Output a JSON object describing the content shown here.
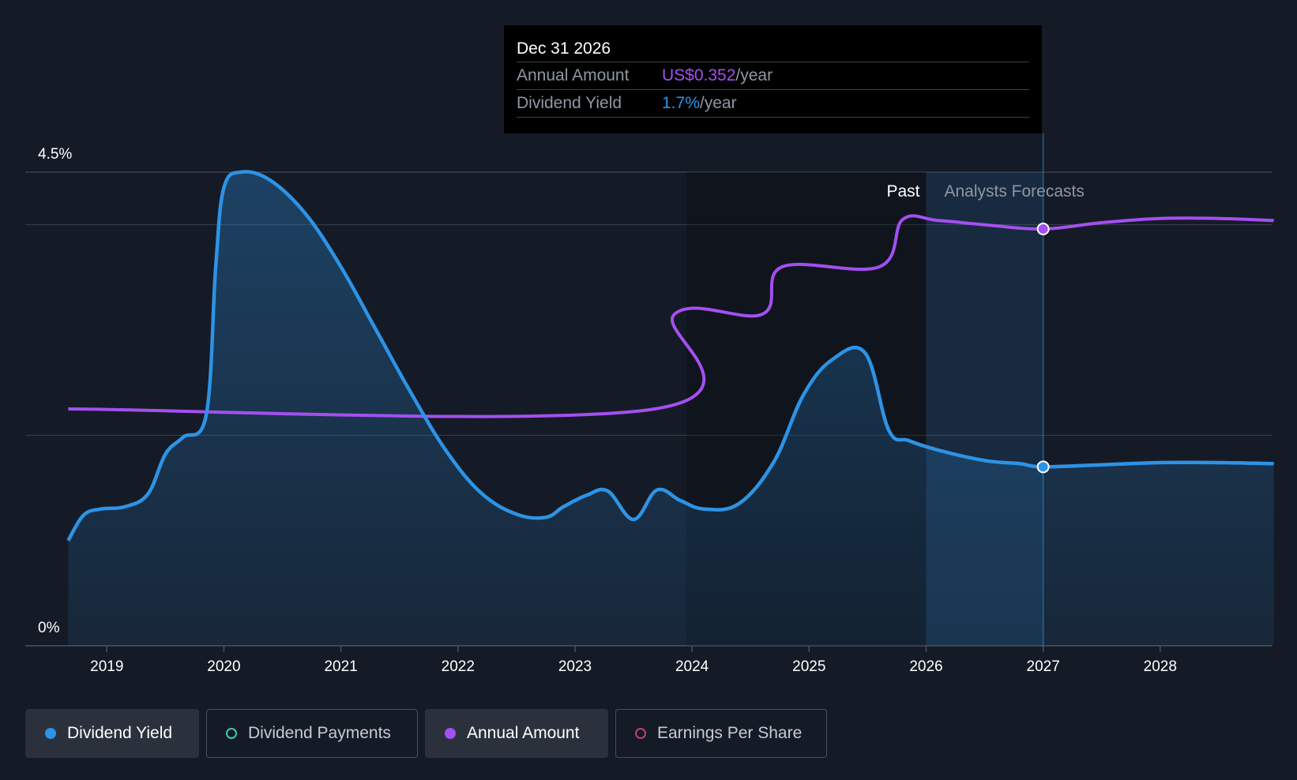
{
  "colors": {
    "background": "#151b26",
    "dividend_yield": "#2d93e6",
    "annual_amount": "#a44ff0",
    "dividend_payments": "#3bc8b4",
    "earnings_per_share": "#c2406e",
    "grid": "#39404b"
  },
  "chart_data": {
    "type": "line",
    "y_axis": {
      "top_label": "4.5%",
      "bottom_label": "0%",
      "ylim": [
        0,
        4.5
      ]
    },
    "x_axis": {
      "ticks": [
        "2019",
        "2020",
        "2021",
        "2022",
        "2023",
        "2024",
        "2025",
        "2026",
        "2027",
        "2028"
      ],
      "xlim": [
        2018.33,
        2029.0
      ]
    },
    "regions": {
      "past_label": "Past",
      "forecast_label": "Analysts Forecasts",
      "forecast_start": 2026.0,
      "hover_x": 2027.0
    },
    "series": [
      {
        "name": "Dividend Yield",
        "kind": "area",
        "points": [
          [
            2018.67,
            1.0
          ],
          [
            2018.8,
            1.24
          ],
          [
            2018.95,
            1.3
          ],
          [
            2019.15,
            1.32
          ],
          [
            2019.35,
            1.44
          ],
          [
            2019.5,
            1.82
          ],
          [
            2019.65,
            1.98
          ],
          [
            2019.85,
            2.2
          ],
          [
            2019.93,
            3.6
          ],
          [
            2020.0,
            4.35
          ],
          [
            2020.15,
            4.5
          ],
          [
            2020.4,
            4.42
          ],
          [
            2020.7,
            4.1
          ],
          [
            2021.0,
            3.6
          ],
          [
            2021.3,
            3.0
          ],
          [
            2021.6,
            2.4
          ],
          [
            2021.9,
            1.85
          ],
          [
            2022.2,
            1.45
          ],
          [
            2022.5,
            1.25
          ],
          [
            2022.75,
            1.22
          ],
          [
            2022.9,
            1.32
          ],
          [
            2023.1,
            1.43
          ],
          [
            2023.28,
            1.47
          ],
          [
            2023.5,
            1.2
          ],
          [
            2023.7,
            1.48
          ],
          [
            2023.9,
            1.38
          ],
          [
            2024.1,
            1.3
          ],
          [
            2024.4,
            1.35
          ],
          [
            2024.7,
            1.75
          ],
          [
            2024.95,
            2.38
          ],
          [
            2025.2,
            2.72
          ],
          [
            2025.48,
            2.78
          ],
          [
            2025.68,
            2.05
          ],
          [
            2025.85,
            1.95
          ],
          [
            2026.1,
            1.86
          ],
          [
            2026.5,
            1.76
          ],
          [
            2026.8,
            1.73
          ],
          [
            2027.0,
            1.7
          ],
          [
            2027.5,
            1.72
          ],
          [
            2028.0,
            1.74
          ],
          [
            2028.5,
            1.74
          ],
          [
            2028.97,
            1.73
          ]
        ]
      },
      {
        "name": "Annual Amount",
        "kind": "line",
        "points": [
          [
            2018.67,
            2.25
          ],
          [
            2023.68,
            2.25
          ],
          [
            2023.85,
            3.15
          ],
          [
            2024.6,
            3.15
          ],
          [
            2024.77,
            3.6
          ],
          [
            2025.6,
            3.6
          ],
          [
            2025.8,
            4.05
          ],
          [
            2026.1,
            4.04
          ],
          [
            2026.5,
            4.0
          ],
          [
            2027.0,
            3.96
          ],
          [
            2027.5,
            4.02
          ],
          [
            2028.0,
            4.06
          ],
          [
            2028.5,
            4.06
          ],
          [
            2028.97,
            4.04
          ]
        ]
      }
    ]
  },
  "tooltip": {
    "date": "Dec 31 2026",
    "rows": [
      {
        "label": "Annual Amount",
        "value": "US$0.352",
        "unit": "/year"
      },
      {
        "label": "Dividend Yield",
        "value": "1.7%",
        "unit": "/year"
      }
    ]
  },
  "legend": [
    {
      "label": "Dividend Yield",
      "active": true
    },
    {
      "label": "Dividend Payments",
      "active": false
    },
    {
      "label": "Annual Amount",
      "active": true
    },
    {
      "label": "Earnings Per Share",
      "active": false
    }
  ]
}
